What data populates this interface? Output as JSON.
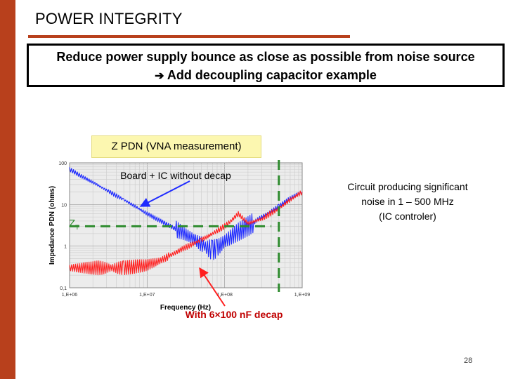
{
  "slide": {
    "title": "POWER INTEGRITY",
    "banner_line1": "Reduce power supply bounce as close as possible from noise source",
    "banner_line2_arrow": "➔",
    "banner_line2": "Add decoupling capacitor example",
    "plot_label": "Z PDN (VNA measurement)",
    "annotation_blue": "Board + IC without decap",
    "annotation_red": "With 6×100 nF decap",
    "note_right_line1": "Circuit producing significant",
    "note_right_line2": "noise in 1 – 500 MHz",
    "note_right_line3": "(IC controler)",
    "target_label": "Z",
    "target_sub": "T",
    "page_number": "28"
  },
  "chart_data": {
    "type": "line",
    "xlabel": "Frequency (Hz)",
    "ylabel": "Impedance PDN (ohms)",
    "xscale": "log",
    "yscale": "log",
    "xlim": [
      1000000,
      1000000000
    ],
    "ylim": [
      0.1,
      100
    ],
    "xticks": [
      1000000,
      10000000,
      100000000,
      1000000000
    ],
    "xtick_labels": [
      "1,E+06",
      "1,E+07",
      "1,E+08",
      "1,E+09"
    ],
    "yticks": [
      0.1,
      1,
      10,
      100
    ],
    "ytick_labels": [
      "0,1",
      "1",
      "10",
      "100"
    ],
    "grid": true,
    "series": [
      {
        "color": "#1f2bff",
        "x": [
          1000000,
          1500000,
          2000000,
          3000000,
          5000000,
          7000000,
          10000000,
          15000000,
          20000000,
          30000000,
          40000000,
          50000000,
          60000000,
          70000000,
          80000000,
          100000000,
          150000000,
          200000000,
          300000000,
          500000000,
          700000000,
          1000000000
        ],
        "y": [
          70,
          45,
          34,
          22,
          13,
          9,
          6,
          4,
          3,
          2,
          1.5,
          1.1,
          0.9,
          0.8,
          0.9,
          1.3,
          2.2,
          3,
          5,
          9,
          14,
          20
        ]
      },
      {
        "color": "#ff1f1f",
        "x": [
          1000000,
          2000000,
          5000000,
          10000000,
          15000000,
          20000000,
          30000000,
          50000000,
          70000000,
          100000000,
          120000000,
          150000000,
          200000000,
          300000000,
          500000000,
          700000000,
          1000000000
        ],
        "y": [
          0.3,
          0.3,
          0.3,
          0.35,
          0.45,
          0.6,
          0.9,
          1.4,
          2.0,
          3.0,
          4.0,
          6.0,
          3.5,
          4.5,
          8.0,
          13,
          20
        ]
      }
    ],
    "target_line": {
      "y": 3,
      "x_end": 400000000,
      "color": "#2e8b2e"
    },
    "vertical_marker": {
      "x": 500000000,
      "color": "#2e8b2e"
    }
  }
}
